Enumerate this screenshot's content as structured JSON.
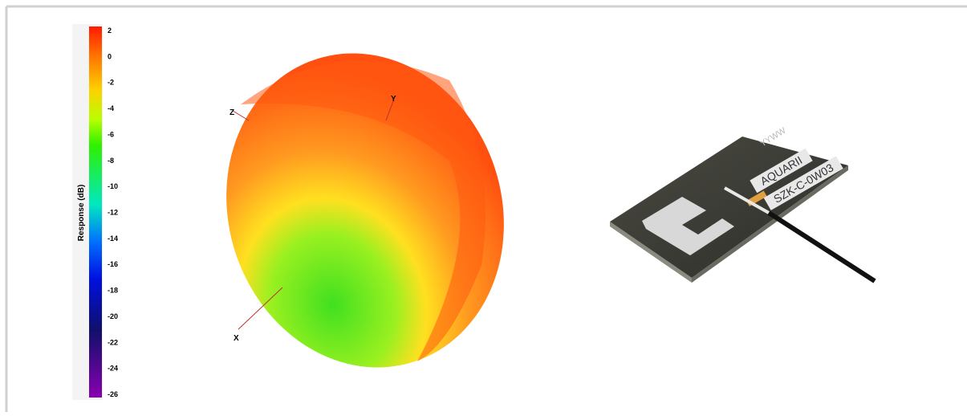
{
  "colorbar": {
    "label": "Response (dB)",
    "ticks": [
      "2",
      "0",
      "-2",
      "-4",
      "-6",
      "-8",
      "-10",
      "-12",
      "-14",
      "-16",
      "-18",
      "-20",
      "-22",
      "-24",
      "-26"
    ]
  },
  "pattern": {
    "axes": {
      "x": "X",
      "y": "Y",
      "z": "Z"
    }
  },
  "antenna": {
    "date_code": "YYWW",
    "brand": "AQUARII",
    "model": "SZK-C-0W03"
  }
}
